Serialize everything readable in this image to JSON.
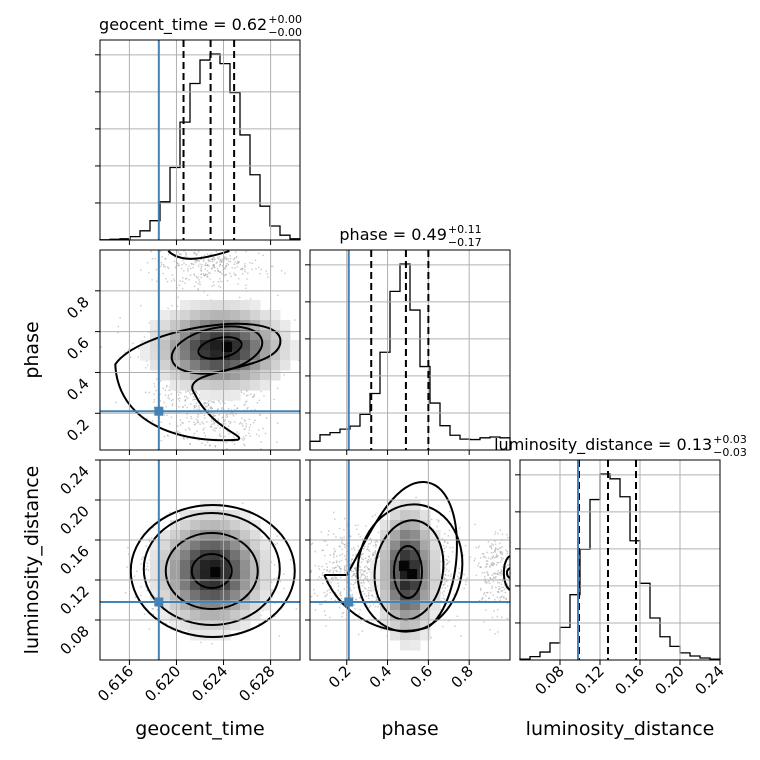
{
  "chart_data": {
    "type": "corner",
    "parameters": [
      "geocent_time",
      "phase",
      "luminosity_distance"
    ],
    "ranges": {
      "geocent_time": [
        0.6135,
        0.6305
      ],
      "phase": [
        0.02,
        1.0
      ],
      "luminosity_distance": [
        0.04,
        0.24
      ]
    },
    "titles": [
      {
        "name": "geocent_time",
        "value": "0.62",
        "plus": "+0.00",
        "minus": "−0.00"
      },
      {
        "name": "phase",
        "value": "0.49",
        "plus": "+0.11",
        "minus": "−0.17"
      },
      {
        "name": "luminosity_distance",
        "value": "0.13",
        "plus": "+0.03",
        "minus": "−0.03"
      }
    ],
    "xtick_labels": {
      "geocent_time": [
        "0.616",
        "0.620",
        "0.624",
        "0.628"
      ],
      "phase": [
        "0.2",
        "0.4",
        "0.6",
        "0.8"
      ],
      "luminosity_distance": [
        "0.08",
        "0.12",
        "0.16",
        "0.20",
        "0.24"
      ]
    },
    "ytick_labels": {
      "phase": [
        "0.2",
        "0.4",
        "0.6",
        "0.8"
      ],
      "luminosity_distance": [
        "0.08",
        "0.12",
        "0.16",
        "0.20",
        "0.24"
      ]
    },
    "truths": {
      "geocent_time": 0.6185,
      "phase": 0.21,
      "luminosity_distance": 0.098
    },
    "quantiles": {
      "geocent_time": [
        0.6206,
        0.6229,
        0.6249
      ],
      "phase": [
        0.32,
        0.49,
        0.6
      ],
      "luminosity_distance": [
        0.099,
        0.128,
        0.156
      ]
    },
    "histograms": {
      "geocent_time": {
        "edges_range": [
          0.6135,
          0.6305
        ],
        "counts": [
          1,
          3,
          5,
          14,
          38,
          80,
          158,
          300,
          488,
          648,
          745,
          770,
          730,
          610,
          435,
          270,
          140,
          58,
          20,
          5
        ]
      },
      "phase": {
        "edges_range": [
          0.02,
          1.0
        ],
        "counts": [
          20,
          35,
          40,
          48,
          55,
          82,
          130,
          225,
          365,
          428,
          322,
          192,
          108,
          56,
          34,
          25,
          24,
          28,
          30,
          28
        ]
      },
      "luminosity_distance": {
        "edges_range": [
          0.04,
          0.24
        ],
        "counts": [
          3,
          12,
          28,
          60,
          115,
          230,
          390,
          565,
          655,
          638,
          575,
          420,
          270,
          148,
          82,
          48,
          25,
          14,
          7,
          3
        ]
      }
    },
    "contour_levels": 4,
    "grid": true,
    "xlabel_row": [
      "geocent_time",
      "phase",
      "luminosity_distance"
    ],
    "ylabel_col": [
      "",
      "phase",
      "luminosity_distance"
    ]
  }
}
